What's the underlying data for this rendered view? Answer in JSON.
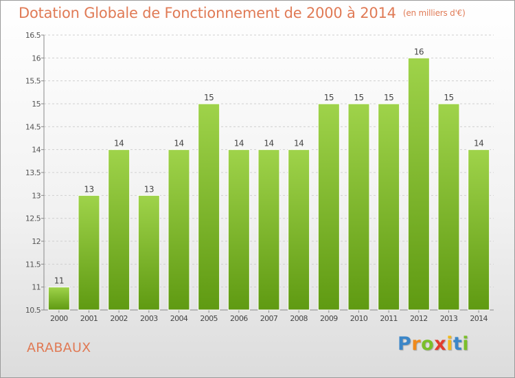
{
  "chart_data": {
    "type": "bar",
    "title": "Dotation Globale de Fonctionnement de 2000 à 2014",
    "unit_label": "(en milliers d'€)",
    "categories": [
      "2000",
      "2001",
      "2002",
      "2003",
      "2004",
      "2005",
      "2006",
      "2007",
      "2008",
      "2009",
      "2010",
      "2011",
      "2012",
      "2013",
      "2014"
    ],
    "values": [
      11,
      13,
      14,
      13,
      14,
      15,
      14,
      14,
      14,
      15,
      15,
      15,
      16,
      15,
      14
    ],
    "value_labels": [
      "11",
      "13",
      "14",
      "13",
      "14",
      "15",
      "14",
      "14",
      "14",
      "15",
      "15",
      "15",
      "16",
      "15",
      "14"
    ],
    "bar_bottom": 10.5,
    "bar_tops": [
      11,
      13,
      14,
      13,
      14,
      15,
      14,
      14,
      14,
      15,
      15,
      15,
      16,
      15,
      14
    ],
    "ylim": [
      10.5,
      16.5
    ],
    "yticks": [
      "10.5",
      "11",
      "11.5",
      "12",
      "12.5",
      "13",
      "13.5",
      "14",
      "14.5",
      "15",
      "15.5",
      "16",
      "16.5"
    ],
    "ytick_values": [
      10.5,
      11,
      11.5,
      12,
      12.5,
      13,
      13.5,
      14,
      14.5,
      15,
      15.5,
      16,
      16.5
    ],
    "grid": true,
    "colors": {
      "bar_top": "#9fd34a",
      "bar_bottom": "#5f9a12",
      "title": "#e07a55",
      "grid": "#cfcfcf"
    }
  },
  "commune": "ARABAUX",
  "brand": {
    "letters": [
      "P",
      "r",
      "o",
      "x",
      "i",
      "t",
      "i"
    ],
    "colors": [
      "#3b86c8",
      "#f08a1c",
      "#7bbf2a",
      "#e23d2e",
      "#f2b91c",
      "#3b86c8",
      "#7bbf2a"
    ]
  }
}
